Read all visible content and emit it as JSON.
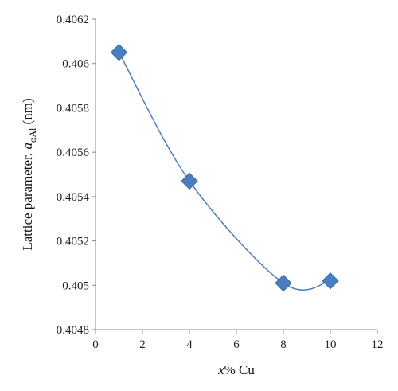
{
  "chart_data": {
    "type": "scatter",
    "series": [
      {
        "x": [
          1,
          4,
          8,
          10
        ],
        "y": [
          0.40605,
          0.40547,
          0.40501,
          0.40502
        ],
        "marker": "diamond",
        "color": "#4a7ebf",
        "line": "smooth"
      }
    ],
    "xlabel": {
      "var": "x",
      "rest": "% Cu"
    },
    "ylabel": {
      "prefix": "Lattice parameter, ",
      "var": "a",
      "sub": "αAl",
      "suffix": " (nm)"
    },
    "xlim": [
      0,
      12
    ],
    "ylim": [
      0.4048,
      0.4062
    ],
    "xticks": [
      "0",
      "2",
      "4",
      "6",
      "8",
      "10",
      "12"
    ],
    "yticks": [
      "0.4048",
      "0.405",
      "0.4052",
      "0.4054",
      "0.4056",
      "0.4058",
      "0.406",
      "0.4062"
    ],
    "grid": false,
    "legend": "none"
  }
}
